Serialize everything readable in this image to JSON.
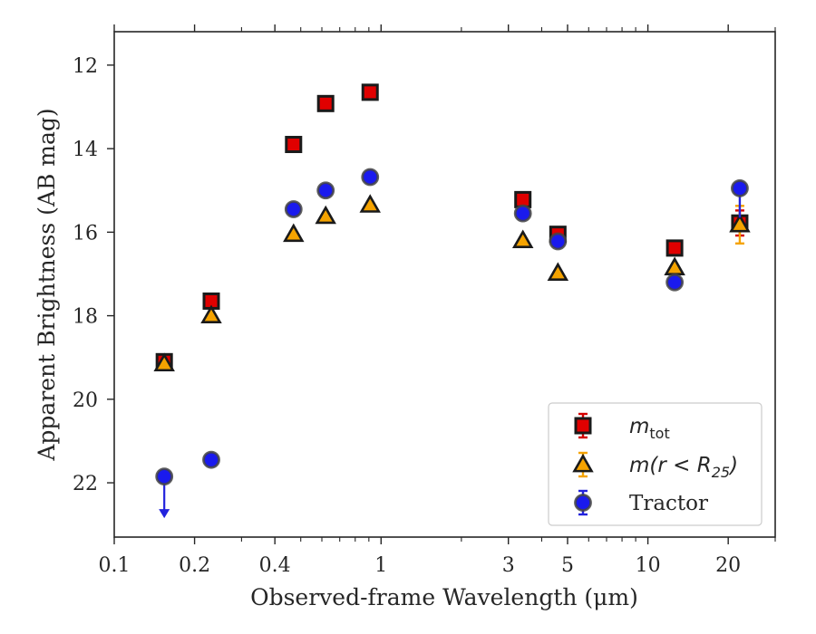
{
  "chart_data": {
    "type": "scatter",
    "x_scale": "log",
    "y_inverted": true,
    "xlim": [
      0.1,
      30
    ],
    "ylim": [
      23.3,
      11.2
    ],
    "xlabel": "Observed-frame Wavelength (μm)",
    "ylabel": "Apparent Brightness (AB mag)",
    "x_ticks": [
      0.1,
      0.2,
      0.4,
      1,
      3,
      5,
      10,
      20
    ],
    "x_tick_labels": [
      "0.1",
      "0.2",
      "0.4",
      "1",
      "3",
      "5",
      "10",
      "20"
    ],
    "x_minor_ticks": [
      0.3,
      0.5,
      0.6,
      0.7,
      0.8,
      0.9,
      2,
      4,
      6,
      7,
      8,
      9,
      30
    ],
    "y_ticks": [
      12,
      14,
      16,
      18,
      20,
      22
    ],
    "y_tick_labels": [
      "12",
      "14",
      "16",
      "18",
      "20",
      "22"
    ],
    "legend_position": "lower right",
    "series": [
      {
        "name": "m_tot",
        "label_main": "m",
        "label_sub": "tot",
        "marker": "square",
        "color": "#e00000",
        "edge": "#1a1a1a",
        "errcolor": "#d40000",
        "points": [
          {
            "x": 0.154,
            "y": 19.1
          },
          {
            "x": 0.231,
            "y": 17.65
          },
          {
            "x": 0.47,
            "y": 13.9
          },
          {
            "x": 0.62,
            "y": 12.92
          },
          {
            "x": 0.91,
            "y": 12.65
          },
          {
            "x": 3.4,
            "y": 15.22
          },
          {
            "x": 4.6,
            "y": 16.05
          },
          {
            "x": 12.6,
            "y": 16.38
          },
          {
            "x": 22.1,
            "y": 15.78,
            "err": 0.3
          }
        ]
      },
      {
        "name": "m(r<R25)",
        "label_main": "m(r < R",
        "label_sub": "25",
        "label_tail": ")",
        "marker": "triangle",
        "color": "#f5a300",
        "edge": "#1a1a1a",
        "errcolor": "#f5a300",
        "points": [
          {
            "x": 0.154,
            "y": 19.15
          },
          {
            "x": 0.231,
            "y": 18.0
          },
          {
            "x": 0.47,
            "y": 16.05
          },
          {
            "x": 0.62,
            "y": 15.62
          },
          {
            "x": 0.91,
            "y": 15.35
          },
          {
            "x": 3.4,
            "y": 16.2
          },
          {
            "x": 4.6,
            "y": 16.98
          },
          {
            "x": 12.6,
            "y": 16.85
          },
          {
            "x": 22.1,
            "y": 15.82,
            "err": 0.45
          }
        ]
      },
      {
        "name": "Tractor",
        "label_main": "Tractor",
        "marker": "circle",
        "color": "#1a1aee",
        "edge": "#444444",
        "errcolor": "#2222dd",
        "points": [
          {
            "x": 0.154,
            "y": 21.85,
            "upper_limit": true
          },
          {
            "x": 0.231,
            "y": 21.45
          },
          {
            "x": 0.47,
            "y": 15.45
          },
          {
            "x": 0.62,
            "y": 15.0
          },
          {
            "x": 0.91,
            "y": 14.68
          },
          {
            "x": 3.4,
            "y": 15.55
          },
          {
            "x": 4.6,
            "y": 16.22
          },
          {
            "x": 12.6,
            "y": 17.2
          },
          {
            "x": 22.1,
            "y": 14.95,
            "err_up_to": 15.65
          }
        ]
      }
    ]
  }
}
